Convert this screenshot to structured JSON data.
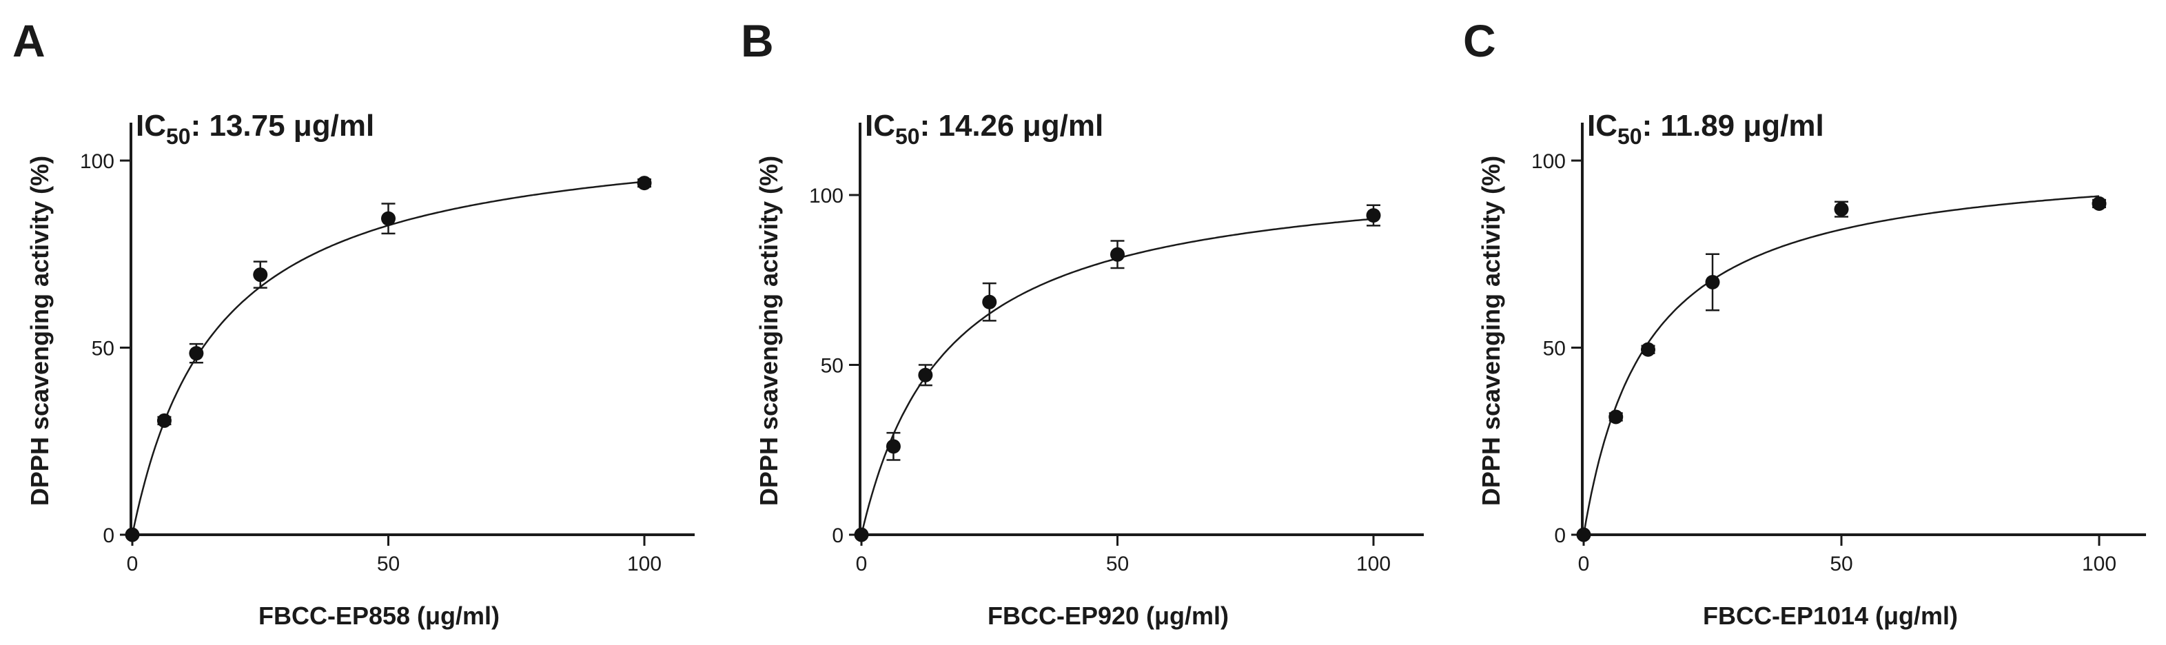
{
  "chart_data": [
    {
      "panel": "A",
      "type": "scatter",
      "ic50_prefix": "IC",
      "ic50_sub": "50",
      "ic50_value": ": 13.75 μg/ml",
      "xlabel": "FBCC-EP858 (μg/ml)",
      "ylabel": "DPPH scavenging activity (%)",
      "xlim": [
        0,
        100
      ],
      "ylim": [
        0,
        100
      ],
      "xticks": [
        0,
        50,
        100
      ],
      "yticks": [
        0,
        50,
        100
      ],
      "x": [
        0,
        6.25,
        12.5,
        25,
        50,
        100
      ],
      "y": [
        0,
        30.5,
        48.5,
        69.5,
        84.5,
        94
      ],
      "err": [
        0,
        1.0,
        2.5,
        3.5,
        4.0,
        1.0
      ],
      "fit": {
        "model": "hyperbolic",
        "top": 109.9,
        "ic50": 13.75
      }
    },
    {
      "panel": "B",
      "type": "scatter",
      "ic50_prefix": "IC",
      "ic50_sub": "50",
      "ic50_value": ": 14.26 μg/ml",
      "xlabel": "FBCC-EP920 (μg/ml)",
      "ylabel": "DPPH scavenging activity (%)",
      "xlim": [
        0,
        100
      ],
      "ylim": [
        0,
        110
      ],
      "xticks": [
        0,
        50,
        100
      ],
      "yticks": [
        0,
        50,
        100
      ],
      "x": [
        0,
        6.25,
        12.5,
        25,
        50,
        100
      ],
      "y": [
        0,
        26,
        47,
        68.5,
        82.5,
        94
      ],
      "err": [
        0,
        4.0,
        3.0,
        5.5,
        4.0,
        3.0
      ],
      "fit": {
        "model": "hyperbolic",
        "top": 108.5,
        "ic50": 14.26
      }
    },
    {
      "panel": "C",
      "type": "scatter",
      "ic50_prefix": "IC",
      "ic50_sub": "50",
      "ic50_value": ": 11.89 μg/ml",
      "xlabel": "FBCC-EP1014 (μg/ml)",
      "ylabel": "DPPH scavenging activity (%)",
      "xlim": [
        0,
        100
      ],
      "ylim": [
        0,
        100
      ],
      "xticks": [
        0,
        50,
        100
      ],
      "yticks": [
        0,
        50,
        100
      ],
      "x": [
        0,
        6.25,
        12.5,
        25,
        50,
        100
      ],
      "y": [
        0,
        31.5,
        49.5,
        67.5,
        87,
        88.5
      ],
      "err": [
        0,
        1.0,
        1.0,
        7.5,
        2.0,
        1.0
      ],
      "fit": {
        "model": "hyperbolic",
        "top": 101.6,
        "ic50": 11.89
      }
    }
  ]
}
